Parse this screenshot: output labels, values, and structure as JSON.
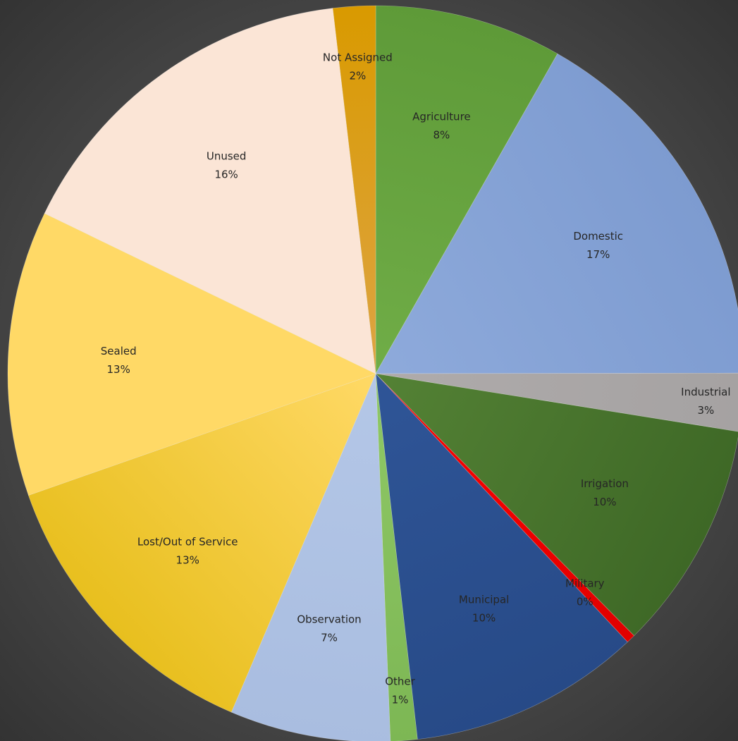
{
  "chart_data": {
    "type": "pie",
    "title": "",
    "start_angle_deg": 0,
    "direction": "clockwise",
    "slices": [
      {
        "name": "Agriculture",
        "value": 8.4,
        "label": "8%",
        "color": "#70AD47",
        "color_dark": "#5E9A38"
      },
      {
        "name": "Domestic",
        "value": 17.1,
        "label": "17%",
        "color": "#8EAADB",
        "color_dark": "#7D9BD0"
      },
      {
        "name": "Industrial",
        "value": 2.6,
        "label": "3%",
        "color": "#AFABAB",
        "color_dark": "#A5A2A2"
      },
      {
        "name": "Irrigation",
        "value": 10.3,
        "label": "10%",
        "color": "#548235",
        "color_dark": "#3E6826"
      },
      {
        "name": "Military",
        "value": 0.4,
        "label": "0%",
        "color": "#FF0000",
        "color_dark": "#E00000"
      },
      {
        "name": "Municipal",
        "value": 10.4,
        "label": "10%",
        "color": "#2F5597",
        "color_dark": "#274A87"
      },
      {
        "name": "Other",
        "value": 1.2,
        "label": "1%",
        "color": "#8FC866",
        "color_dark": "#7DB754"
      },
      {
        "name": "Observation",
        "value": 7.2,
        "label": "7%",
        "color": "#B4C7E7",
        "color_dark": "#A9BDE0"
      },
      {
        "name": "Lost/Out of Service",
        "value": 13.5,
        "label": "13%",
        "color": "#FFD966",
        "color_dark": "#E8BF1E"
      },
      {
        "name": "Sealed",
        "value": 12.8,
        "label": "13%",
        "color": "#FFD966",
        "color_dark": "#FFD966"
      },
      {
        "name": "Unused",
        "value": 16.3,
        "label": "16%",
        "color": "#FBE5D6",
        "color_dark": "#FBE5D6"
      },
      {
        "name": "Not Assigned",
        "value": 1.9,
        "label": "2%",
        "color": "#DDA444",
        "color_dark": "#D99A00"
      }
    ]
  }
}
